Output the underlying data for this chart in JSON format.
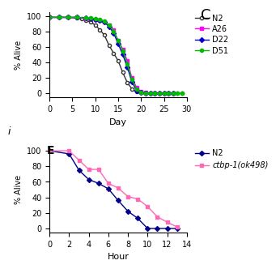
{
  "top": {
    "xlabel": "Day",
    "ylabel": "% Alive",
    "xlim": [
      0,
      30
    ],
    "ylim": [
      -5,
      105
    ],
    "xticks": [
      0,
      5,
      10,
      15,
      20,
      25,
      30
    ],
    "yticks": [
      0,
      20,
      40,
      60,
      80,
      100
    ],
    "series": [
      {
        "label": "N2",
        "color": "#333333",
        "marker": "o",
        "markerfacecolor": "white",
        "x": [
          0,
          2,
          4,
          6,
          7,
          8,
          9,
          10,
          11,
          12,
          13,
          14,
          15,
          16,
          17,
          18,
          19,
          20,
          21,
          22,
          23,
          24,
          25,
          26,
          27,
          28,
          29
        ],
        "y": [
          98,
          98,
          98,
          97,
          96,
          94,
          92,
          88,
          82,
          75,
          62,
          52,
          42,
          27,
          14,
          6,
          2,
          1,
          0,
          0,
          0,
          0,
          0,
          0,
          0,
          0,
          0
        ]
      },
      {
        "label": "A26",
        "color": "#ff00ff",
        "marker": "s",
        "markerfacecolor": "#ff00ff",
        "x": [
          0,
          2,
          4,
          6,
          8,
          9,
          10,
          11,
          12,
          13,
          14,
          15,
          16,
          17,
          18,
          19,
          20,
          21,
          22,
          23,
          24,
          25,
          26,
          27
        ],
        "y": [
          98,
          98,
          98,
          98,
          96,
          96,
          95,
          94,
          92,
          88,
          82,
          68,
          57,
          42,
          20,
          8,
          2,
          1,
          0,
          0,
          0,
          0,
          0,
          0
        ]
      },
      {
        "label": "D22",
        "color": "#0000cc",
        "marker": "D",
        "markerfacecolor": "#0000cc",
        "x": [
          0,
          2,
          4,
          6,
          8,
          9,
          10,
          11,
          12,
          13,
          14,
          15,
          16,
          17,
          18,
          19,
          20,
          21,
          22,
          23,
          24,
          25,
          26,
          27
        ],
        "y": [
          98,
          98,
          98,
          98,
          97,
          96,
          95,
          94,
          92,
          86,
          78,
          64,
          50,
          34,
          15,
          4,
          1,
          0,
          0,
          0,
          0,
          0,
          0,
          0
        ]
      },
      {
        "label": "D51",
        "color": "#00bb00",
        "marker": "o",
        "markerfacecolor": "#00bb00",
        "x": [
          0,
          2,
          4,
          6,
          8,
          9,
          10,
          11,
          12,
          13,
          14,
          15,
          16,
          17,
          18,
          19,
          20,
          21,
          22,
          23,
          24,
          25,
          26,
          27,
          28,
          29
        ],
        "y": [
          98,
          98,
          98,
          98,
          97,
          97,
          96,
          95,
          93,
          88,
          80,
          68,
          55,
          38,
          18,
          6,
          1,
          0,
          0,
          0,
          0,
          0,
          0,
          0,
          0,
          0
        ]
      }
    ]
  },
  "bottom": {
    "xlabel": "Hour",
    "ylabel": "% Alive",
    "xlim": [
      0,
      14
    ],
    "ylim": [
      -5,
      105
    ],
    "xticks": [
      0,
      2,
      4,
      6,
      8,
      10,
      12,
      14
    ],
    "yticks": [
      0,
      20,
      40,
      60,
      80,
      100
    ],
    "series": [
      {
        "label": "N2",
        "color": "#00008b",
        "marker": "D",
        "markerfacecolor": "#00008b",
        "x": [
          0,
          2,
          3,
          4,
          5,
          6,
          7,
          8,
          9,
          10,
          11,
          12,
          13
        ],
        "y": [
          100,
          96,
          75,
          63,
          58,
          51,
          36,
          22,
          13,
          0,
          0,
          0,
          0
        ]
      },
      {
        "label": "ctbp-1(ok498)",
        "color": "#ff69b4",
        "marker": "s",
        "markerfacecolor": "#ff69b4",
        "x": [
          0,
          2,
          3,
          4,
          5,
          6,
          7,
          8,
          9,
          10,
          11,
          12,
          13
        ],
        "y": [
          100,
          100,
          88,
          76,
          76,
          58,
          52,
          41,
          38,
          28,
          15,
          8,
          2
        ]
      }
    ]
  },
  "C_letter_x": 0.755,
  "C_letter_y": 0.975,
  "i_letter_x": 0.01,
  "i_letter_y": 0.5,
  "E_letter_x": 0.155,
  "E_letter_y": 0.47,
  "background_color": "#ffffff"
}
